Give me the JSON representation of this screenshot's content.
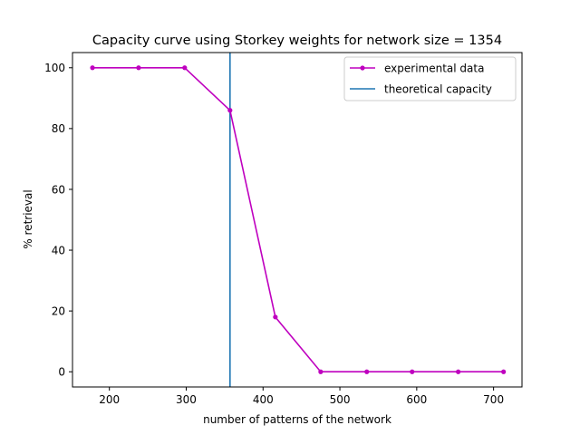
{
  "chart_data": {
    "type": "line",
    "title": "Capacity curve using Storkey weights for network size = 1354",
    "xlabel": "number of patterns of the network",
    "ylabel": "% retrieval",
    "xlim": [
      152,
      737
    ],
    "ylim": [
      -5,
      105
    ],
    "xticks": [
      200,
      300,
      400,
      500,
      600,
      700
    ],
    "yticks": [
      0,
      20,
      40,
      60,
      80,
      100
    ],
    "grid": false,
    "legend_position": "top-right",
    "series": [
      {
        "name": "experimental data",
        "color": "#bf00bf",
        "marker": "circle",
        "x": [
          178,
          238,
          298,
          357,
          416,
          475,
          535,
          594,
          654,
          713
        ],
        "y": [
          100,
          100,
          100,
          86,
          18,
          0,
          0,
          0,
          0,
          0
        ]
      }
    ],
    "vlines": [
      {
        "name": "theoretical capacity",
        "x": 357,
        "color": "#1f77b4"
      }
    ]
  }
}
